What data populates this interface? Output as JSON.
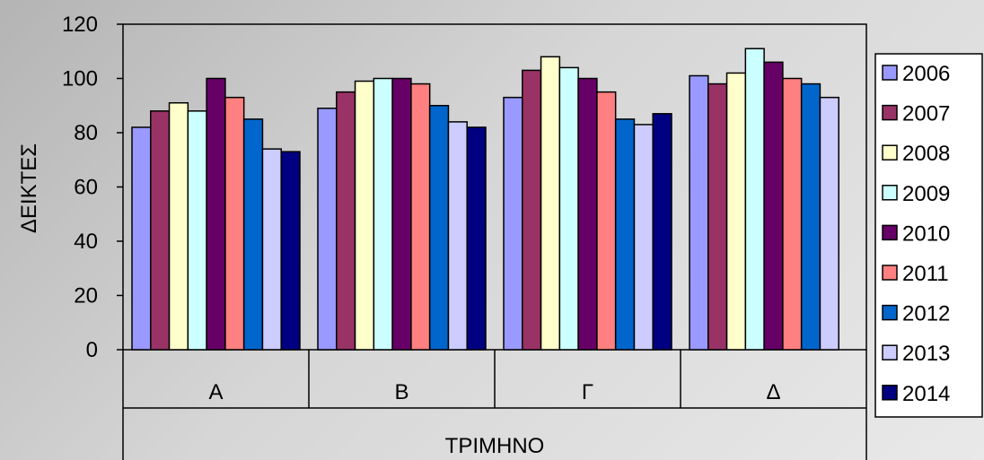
{
  "chart_data": {
    "type": "bar",
    "categories": [
      "Α",
      "Β",
      "Γ",
      "Δ"
    ],
    "ylabel": "ΔΕΙΚΤΕΣ",
    "xlabel": "ΤΡΙΜΗΝΟ",
    "ylim": [
      0,
      120
    ],
    "yticks": [
      0,
      20,
      40,
      60,
      80,
      100,
      120
    ],
    "grid": false,
    "legend": "right",
    "series": [
      {
        "name": "2006",
        "color": "#9999ff",
        "values": [
          82,
          89,
          93,
          101
        ]
      },
      {
        "name": "2007",
        "color": "#993366",
        "values": [
          88,
          95,
          103,
          98
        ]
      },
      {
        "name": "2008",
        "color": "#ffffcc",
        "values": [
          91,
          99,
          108,
          102
        ]
      },
      {
        "name": "2009",
        "color": "#ccffff",
        "values": [
          88,
          100,
          104,
          111
        ]
      },
      {
        "name": "2010",
        "color": "#660066",
        "values": [
          100,
          100,
          100,
          106
        ]
      },
      {
        "name": "2011",
        "color": "#ff8080",
        "values": [
          93,
          98,
          95,
          100
        ]
      },
      {
        "name": "2012",
        "color": "#0066cc",
        "values": [
          85,
          90,
          85,
          98
        ]
      },
      {
        "name": "2013",
        "color": "#ccccff",
        "values": [
          74,
          84,
          83,
          93
        ]
      },
      {
        "name": "2014",
        "color": "#000080",
        "values": [
          73,
          82,
          87,
          null
        ]
      }
    ]
  }
}
